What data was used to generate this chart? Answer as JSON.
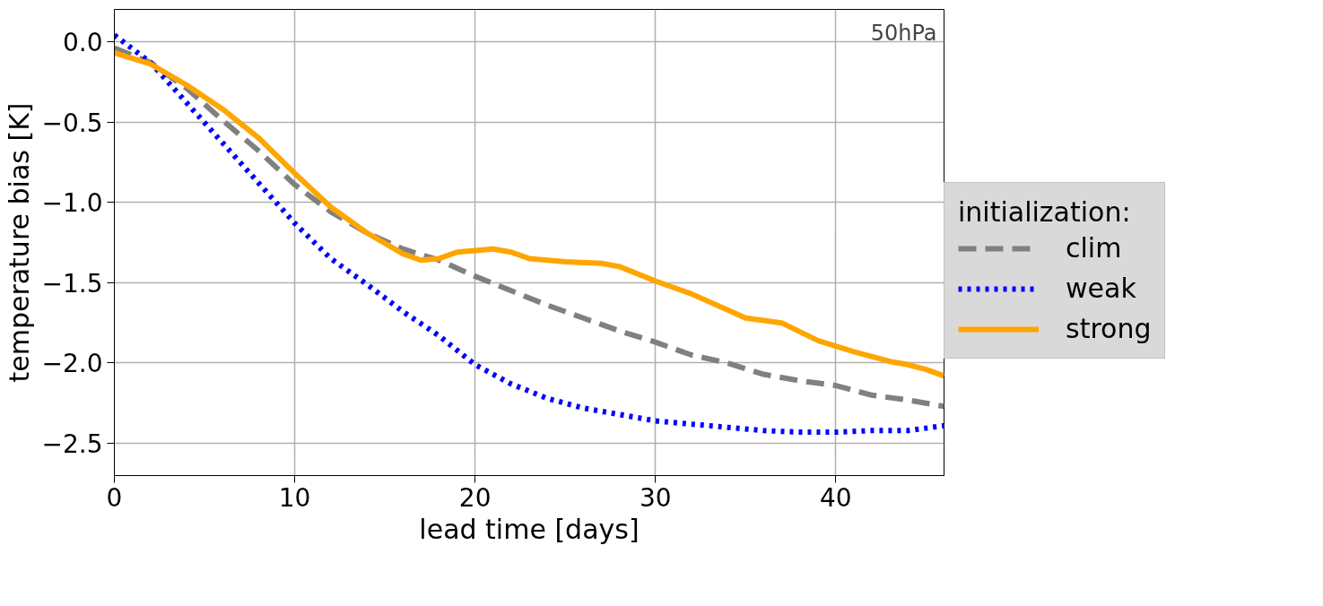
{
  "chart_data": {
    "type": "line",
    "xlabel": "lead time [days]",
    "ylabel": "temperature bias [K]",
    "legend_title": "initialization:",
    "annotations": [
      "50hPa"
    ],
    "xlim": [
      0,
      46
    ],
    "ylim": [
      -2.7,
      0.2
    ],
    "xticks": [
      0,
      10,
      20,
      30,
      40
    ],
    "yticks": [
      {
        "value": 0,
        "label": "0.0"
      },
      {
        "value": -0.5,
        "label": "−0.5"
      },
      {
        "value": -1.0,
        "label": "−1.0"
      },
      {
        "value": -1.5,
        "label": "−1.5"
      },
      {
        "value": -2.0,
        "label": "−2.0"
      },
      {
        "value": -2.5,
        "label": "−2.5"
      }
    ],
    "grid": true,
    "legend": "right",
    "series": [
      {
        "name": "clim",
        "color": "#808080",
        "line_style": "dashed",
        "x": [
          0,
          2,
          4,
          6,
          8,
          10,
          12,
          14,
          16,
          18,
          20,
          22,
          24,
          26,
          28,
          30,
          32,
          34,
          36,
          38,
          40,
          42,
          44,
          46
        ],
        "values": [
          -0.04,
          -0.13,
          -0.29,
          -0.49,
          -0.68,
          -0.89,
          -1.06,
          -1.19,
          -1.29,
          -1.36,
          -1.46,
          -1.55,
          -1.64,
          -1.72,
          -1.8,
          -1.87,
          -1.95,
          -2.0,
          -2.07,
          -2.11,
          -2.14,
          -2.2,
          -2.23,
          -2.27
        ]
      },
      {
        "name": "weak",
        "color": "#0000ff",
        "line_style": "dotted",
        "x": [
          0,
          2,
          4,
          6,
          8,
          10,
          12,
          14,
          16,
          18,
          20,
          22,
          24,
          26,
          28,
          30,
          32,
          34,
          36,
          38,
          40,
          42,
          44,
          46
        ],
        "values": [
          0.04,
          -0.13,
          -0.38,
          -0.63,
          -0.88,
          -1.13,
          -1.35,
          -1.51,
          -1.68,
          -1.83,
          -2.01,
          -2.13,
          -2.22,
          -2.28,
          -2.32,
          -2.36,
          -2.38,
          -2.4,
          -2.42,
          -2.43,
          -2.43,
          -2.42,
          -2.42,
          -2.39
        ]
      },
      {
        "name": "strong",
        "color": "#ffa500",
        "line_style": "solid",
        "x": [
          0,
          2,
          4,
          6,
          8,
          10,
          12,
          14,
          16,
          17,
          18,
          19,
          21,
          22,
          23,
          25,
          27,
          28,
          30,
          32,
          34,
          35,
          37,
          39,
          41,
          43,
          44,
          45,
          46
        ],
        "values": [
          -0.07,
          -0.14,
          -0.27,
          -0.42,
          -0.6,
          -0.82,
          -1.03,
          -1.19,
          -1.32,
          -1.36,
          -1.35,
          -1.31,
          -1.29,
          -1.31,
          -1.35,
          -1.37,
          -1.38,
          -1.4,
          -1.49,
          -1.57,
          -1.67,
          -1.72,
          -1.75,
          -1.86,
          -1.93,
          -1.99,
          -2.01,
          -2.04,
          -2.08
        ]
      }
    ]
  }
}
